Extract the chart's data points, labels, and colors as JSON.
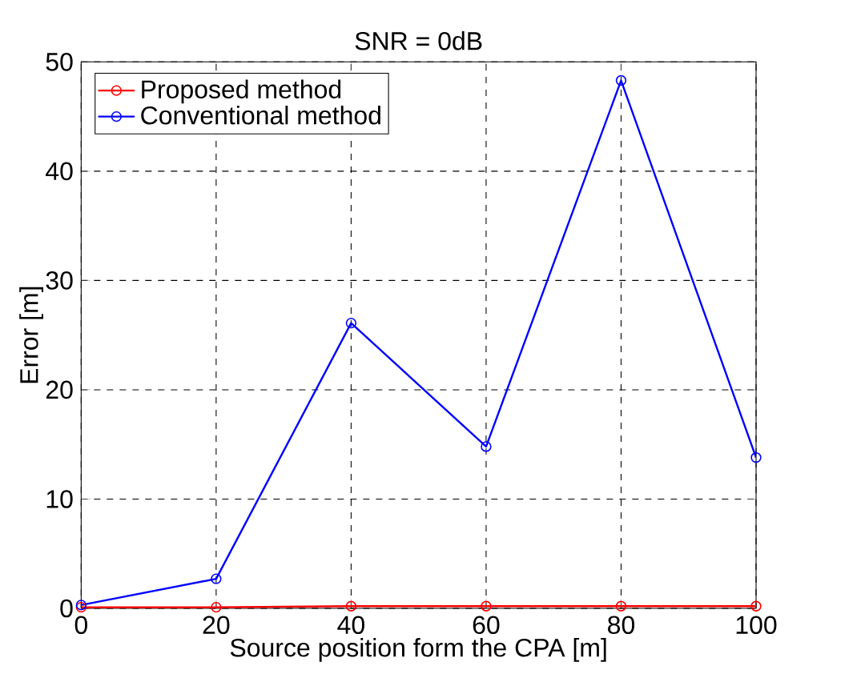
{
  "chart_data": {
    "type": "line",
    "title": "SNR = 0dB",
    "xlabel": "Source position form the CPA  [m]",
    "ylabel": "Error [m]",
    "x": [
      0,
      20,
      40,
      60,
      80,
      100
    ],
    "series": [
      {
        "name": "Proposed method",
        "color": "#ff0000",
        "values": [
          0.1,
          0.1,
          0.2,
          0.2,
          0.2,
          0.2
        ]
      },
      {
        "name": "Conventional method",
        "color": "#0000ff",
        "values": [
          0.3,
          2.7,
          26.1,
          14.8,
          48.3,
          13.8
        ]
      }
    ],
    "xlim": [
      0,
      100
    ],
    "ylim": [
      0,
      50
    ],
    "xticks": [
      0,
      20,
      40,
      60,
      80,
      100
    ],
    "yticks": [
      0,
      10,
      20,
      30,
      40,
      50
    ],
    "grid": true,
    "legend": "top left",
    "marker": "circle",
    "line_style": "solid"
  }
}
